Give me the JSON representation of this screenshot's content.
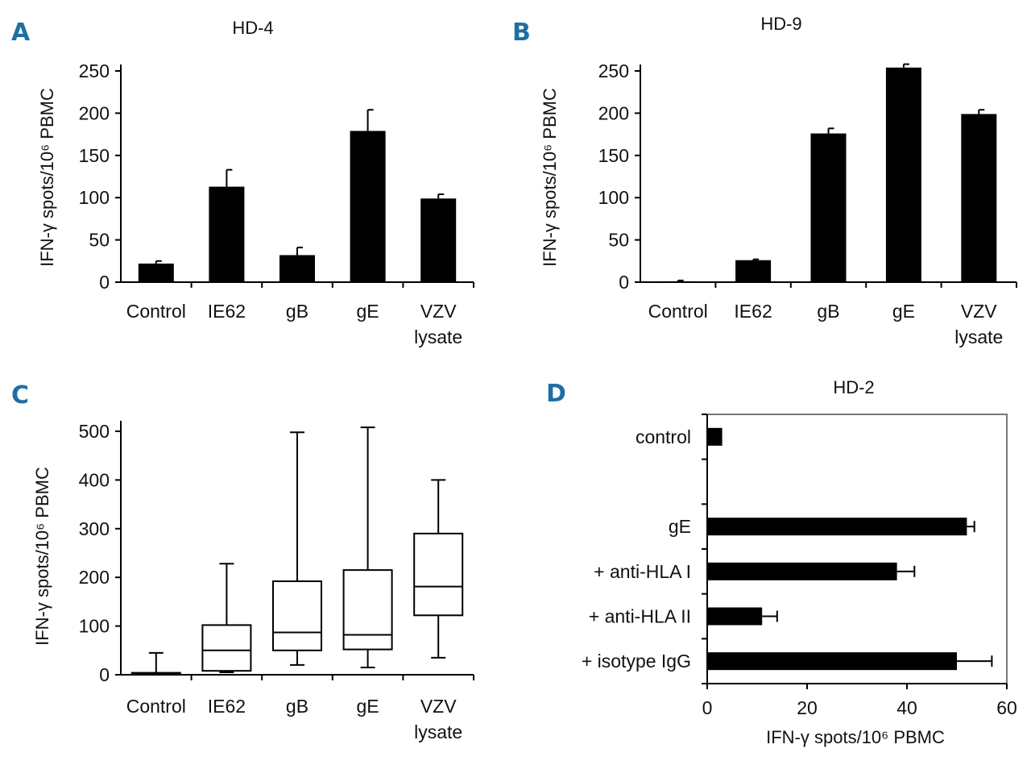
{
  "chart_data": [
    {
      "panel": "A",
      "type": "bar",
      "title": "HD-4",
      "ylabel": "IFN-γ spots/10⁶ PBMC",
      "xlabel": "",
      "ylim": [
        0,
        250
      ],
      "yticks": [
        0,
        50,
        100,
        150,
        200,
        250
      ],
      "categories": [
        "Control",
        "IE62",
        "gB",
        "gE",
        "VZV lysate"
      ],
      "category_lines": [
        [
          "Control"
        ],
        [
          "IE62"
        ],
        [
          "gB"
        ],
        [
          "gE"
        ],
        [
          "VZV",
          "lysate"
        ]
      ],
      "values": [
        22,
        113,
        32,
        179,
        99
      ],
      "errors": [
        3,
        20,
        9,
        25,
        5
      ]
    },
    {
      "panel": "B",
      "type": "bar",
      "title": "HD-9",
      "ylabel": "IFN-γ spots/10⁶ PBMC",
      "xlabel": "",
      "ylim": [
        0,
        250
      ],
      "yticks": [
        0,
        50,
        100,
        150,
        200,
        250
      ],
      "categories": [
        "Control",
        "IE62",
        "gB",
        "gE",
        "VZV lysate"
      ],
      "category_lines": [
        [
          "Control"
        ],
        [
          "IE62"
        ],
        [
          "gB"
        ],
        [
          "gE"
        ],
        [
          "VZV",
          "lysate"
        ]
      ],
      "values": [
        1,
        26,
        176,
        254,
        199
      ],
      "errors": [
        1,
        1,
        6,
        4,
        5
      ]
    },
    {
      "panel": "C",
      "type": "box",
      "title": "",
      "ylabel": "IFN-γ spots/10⁶ PBMC",
      "xlabel": "",
      "ylim": [
        0,
        500
      ],
      "yticks": [
        0,
        100,
        200,
        300,
        400,
        500
      ],
      "categories": [
        "Control",
        "IE62",
        "gB",
        "gE",
        "VZV lysate"
      ],
      "category_lines": [
        [
          "Control"
        ],
        [
          "IE62"
        ],
        [
          "gB"
        ],
        [
          "gE"
        ],
        [
          "VZV",
          "lysate"
        ]
      ],
      "boxes": [
        {
          "min": 0,
          "q1": 0,
          "median": 2,
          "q3": 4,
          "max": 45
        },
        {
          "min": 5,
          "q1": 8,
          "median": 50,
          "q3": 102,
          "max": 228
        },
        {
          "min": 20,
          "q1": 50,
          "median": 87,
          "q3": 192,
          "max": 498
        },
        {
          "min": 15,
          "q1": 52,
          "median": 82,
          "q3": 215,
          "max": 508
        },
        {
          "min": 35,
          "q1": 122,
          "median": 181,
          "q3": 290,
          "max": 400
        }
      ]
    },
    {
      "panel": "D",
      "type": "bar",
      "orientation": "horizontal",
      "title": "HD-2",
      "xlabel": "IFN-γ spots/10⁶ PBMC",
      "ylabel": "",
      "xlim": [
        0,
        60
      ],
      "xticks": [
        0,
        20,
        40,
        60
      ],
      "categories": [
        "control",
        "",
        "gE",
        "+ anti-HLA I",
        "+ anti-HLA II",
        "+ isotype IgG"
      ],
      "values": [
        3,
        null,
        52,
        38,
        11,
        50
      ],
      "errors": [
        0,
        null,
        1.5,
        3.5,
        3,
        7
      ]
    }
  ]
}
